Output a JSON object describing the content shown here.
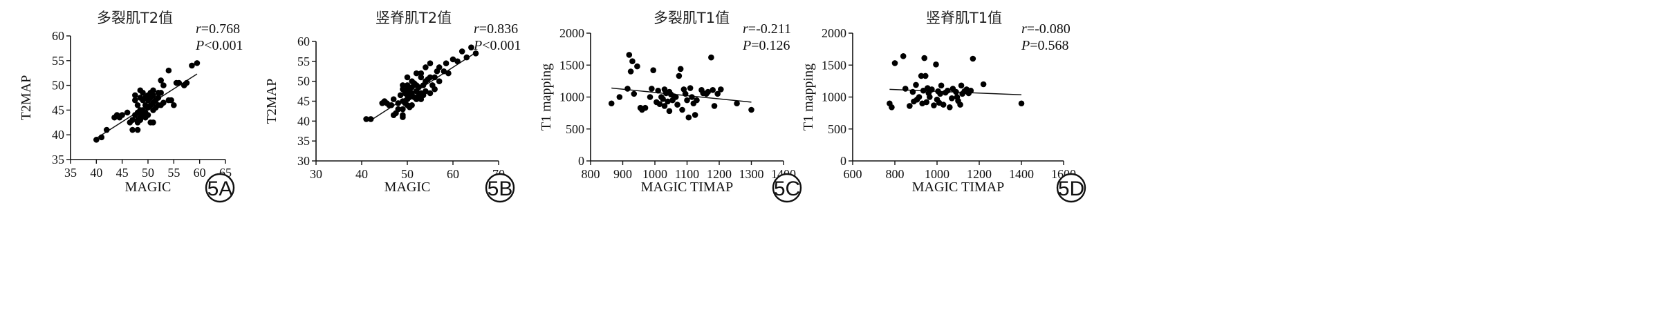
{
  "chart_data": [
    {
      "id": "5A",
      "type": "scatter",
      "title": "多裂肌T2值",
      "xlabel": "MAGIC",
      "ylabel": "T2MAP",
      "xlim": [
        35,
        65
      ],
      "ylim": [
        35,
        60
      ],
      "xticks": [
        "35",
        "40",
        "45",
        "50",
        "55",
        "60",
        "65"
      ],
      "yticks": [
        "35",
        "40",
        "45",
        "50",
        "55",
        "60"
      ],
      "r_label": "r",
      "r_value": "=0.768",
      "p_label": "P",
      "p_value": "<0.001",
      "badge": "5A",
      "fit": [
        [
          40,
          39.3
        ],
        [
          59.5,
          52.3
        ]
      ],
      "points": [
        [
          40,
          39
        ],
        [
          41,
          39.5
        ],
        [
          42,
          41
        ],
        [
          43.5,
          43.5
        ],
        [
          44,
          44
        ],
        [
          44.5,
          43.5
        ],
        [
          45,
          44
        ],
        [
          46,
          44.5
        ],
        [
          46.5,
          42.5
        ],
        [
          47,
          41
        ],
        [
          47,
          43
        ],
        [
          47.5,
          44
        ],
        [
          47.5,
          47
        ],
        [
          47.5,
          48
        ],
        [
          48,
          41
        ],
        [
          48,
          42.5
        ],
        [
          48,
          43
        ],
        [
          48,
          44.5
        ],
        [
          48,
          46
        ],
        [
          48.5,
          43
        ],
        [
          48.5,
          43.5
        ],
        [
          48.5,
          44.5
        ],
        [
          48.5,
          45
        ],
        [
          48.5,
          47.5
        ],
        [
          48.5,
          49
        ],
        [
          49,
          44
        ],
        [
          49,
          45
        ],
        [
          49,
          47
        ],
        [
          49,
          48.5
        ],
        [
          49.5,
          43.5
        ],
        [
          49.5,
          44.5
        ],
        [
          49.5,
          46
        ],
        [
          49.5,
          47.5
        ],
        [
          50,
          44
        ],
        [
          50,
          45.5
        ],
        [
          50,
          47
        ],
        [
          50,
          48
        ],
        [
          50.5,
          42.5
        ],
        [
          50.5,
          46
        ],
        [
          50.5,
          47.5
        ],
        [
          50.5,
          48.5
        ],
        [
          51,
          42.5
        ],
        [
          51,
          45
        ],
        [
          51,
          46.5
        ],
        [
          51,
          48
        ],
        [
          51,
          49
        ],
        [
          51.5,
          45.5
        ],
        [
          51.5,
          47
        ],
        [
          52,
          46
        ],
        [
          52,
          47.5
        ],
        [
          52,
          48.5
        ],
        [
          52.5,
          46
        ],
        [
          52.5,
          48.5
        ],
        [
          52.5,
          51
        ],
        [
          53,
          46.5
        ],
        [
          53,
          50
        ],
        [
          54,
          47
        ],
        [
          54,
          53
        ],
        [
          54.5,
          47
        ],
        [
          55,
          46
        ],
        [
          55.5,
          50.5
        ],
        [
          56,
          50.5
        ],
        [
          57,
          50
        ],
        [
          57.5,
          50.5
        ],
        [
          58.5,
          54
        ],
        [
          59.5,
          54.5
        ]
      ]
    },
    {
      "id": "5B",
      "type": "scatter",
      "title": "竖脊肌T2值",
      "xlabel": "MAGIC",
      "ylabel": "T2MAP",
      "xlim": [
        30,
        70
      ],
      "ylim": [
        30,
        60
      ],
      "xticks": [
        "30",
        "40",
        "50",
        "60",
        "70"
      ],
      "yticks": [
        "30",
        "35",
        "40",
        "45",
        "50",
        "55",
        "60"
      ],
      "r_label": "r",
      "r_value": "=0.836",
      "p_label": "P",
      "p_value": "<0.001",
      "badge": "5B",
      "fit": [
        [
          42,
          40.2
        ],
        [
          65,
          57.2
        ]
      ],
      "points": [
        [
          41,
          40.5
        ],
        [
          42,
          40.5
        ],
        [
          44.5,
          44.5
        ],
        [
          45,
          45
        ],
        [
          45.5,
          44.5
        ],
        [
          46,
          44
        ],
        [
          46.5,
          44
        ],
        [
          47,
          41.5
        ],
        [
          47,
          45.5
        ],
        [
          47.5,
          42
        ],
        [
          48,
          43
        ],
        [
          48,
          44.5
        ],
        [
          48.5,
          46.5
        ],
        [
          49,
          41
        ],
        [
          49,
          41.5
        ],
        [
          49,
          43
        ],
        [
          49,
          45
        ],
        [
          49,
          48
        ],
        [
          49,
          49
        ],
        [
          49.5,
          44.5
        ],
        [
          49.5,
          47
        ],
        [
          49.5,
          47.5
        ],
        [
          50,
          44
        ],
        [
          50,
          45.5
        ],
        [
          50,
          46.5
        ],
        [
          50,
          48
        ],
        [
          50,
          49
        ],
        [
          50,
          51
        ],
        [
          50.5,
          43.5
        ],
        [
          50.5,
          46
        ],
        [
          50.5,
          47.5
        ],
        [
          51,
          44
        ],
        [
          51,
          47
        ],
        [
          51,
          48.5
        ],
        [
          51,
          50
        ],
        [
          51.5,
          46
        ],
        [
          51.5,
          49.5
        ],
        [
          52,
          45.5
        ],
        [
          52,
          47.5
        ],
        [
          52,
          49
        ],
        [
          52,
          52
        ],
        [
          52.5,
          46.5
        ],
        [
          52.5,
          48.5
        ],
        [
          53,
          45.5
        ],
        [
          53,
          47
        ],
        [
          53,
          51
        ],
        [
          53,
          52
        ],
        [
          53.5,
          46.5
        ],
        [
          53.5,
          49
        ],
        [
          54,
          47.5
        ],
        [
          54,
          50
        ],
        [
          54,
          53.5
        ],
        [
          54.5,
          50.5
        ],
        [
          55,
          47
        ],
        [
          55,
          51
        ],
        [
          55,
          54.5
        ],
        [
          55.5,
          49
        ],
        [
          56,
          48
        ],
        [
          56,
          51
        ],
        [
          56.5,
          52.5
        ],
        [
          57,
          50
        ],
        [
          57,
          53.5
        ],
        [
          58,
          52.5
        ],
        [
          58.5,
          54.5
        ],
        [
          59,
          52
        ],
        [
          60,
          55.5
        ],
        [
          61,
          55
        ],
        [
          62,
          57.5
        ],
        [
          63,
          56
        ],
        [
          64,
          58.5
        ],
        [
          65,
          57
        ]
      ]
    },
    {
      "id": "5C",
      "type": "scatter",
      "title": "多裂肌T1值",
      "xlabel": "MAGIC TIMAP",
      "ylabel": "T1 mapping",
      "xlim": [
        800,
        1400
      ],
      "ylim": [
        0,
        2000
      ],
      "xticks": [
        "800",
        "900",
        "1000",
        "1100",
        "1200",
        "1300",
        "1400"
      ],
      "yticks": [
        "0",
        "500",
        "1000",
        "1500",
        "2000"
      ],
      "r_label": "r",
      "r_value": "=-0.211",
      "p_label": "P",
      "p_value": "=0.126",
      "badge": "5C",
      "fit": [
        [
          865,
          1140
        ],
        [
          1300,
          920
        ]
      ],
      "points": [
        [
          865,
          900
        ],
        [
          890,
          1000
        ],
        [
          915,
          1130
        ],
        [
          920,
          1660
        ],
        [
          925,
          1400
        ],
        [
          930,
          1560
        ],
        [
          935,
          1050
        ],
        [
          945,
          1480
        ],
        [
          955,
          830
        ],
        [
          960,
          800
        ],
        [
          970,
          830
        ],
        [
          985,
          1000
        ],
        [
          990,
          1130
        ],
        [
          995,
          1420
        ],
        [
          1005,
          920
        ],
        [
          1010,
          1100
        ],
        [
          1015,
          890
        ],
        [
          1020,
          1000
        ],
        [
          1025,
          970
        ],
        [
          1030,
          1120
        ],
        [
          1030,
          860
        ],
        [
          1035,
          1060
        ],
        [
          1040,
          930
        ],
        [
          1045,
          1080
        ],
        [
          1045,
          780
        ],
        [
          1050,
          1040
        ],
        [
          1055,
          950
        ],
        [
          1060,
          1010
        ],
        [
          1065,
          1000
        ],
        [
          1070,
          880
        ],
        [
          1075,
          1330
        ],
        [
          1080,
          1440
        ],
        [
          1085,
          800
        ],
        [
          1090,
          1120
        ],
        [
          1095,
          1050
        ],
        [
          1100,
          950
        ],
        [
          1105,
          680
        ],
        [
          1110,
          1140
        ],
        [
          1115,
          1000
        ],
        [
          1120,
          900
        ],
        [
          1125,
          720
        ],
        [
          1130,
          950
        ],
        [
          1145,
          1110
        ],
        [
          1150,
          1060
        ],
        [
          1160,
          1050
        ],
        [
          1165,
          1080
        ],
        [
          1175,
          1620
        ],
        [
          1180,
          1110
        ],
        [
          1185,
          860
        ],
        [
          1195,
          1050
        ],
        [
          1205,
          1120
        ],
        [
          1255,
          900
        ],
        [
          1300,
          800
        ]
      ]
    },
    {
      "id": "5D",
      "type": "scatter",
      "title": "竖脊肌T1值",
      "xlabel": "MAGIC TIMAP",
      "ylabel": "T1 mapping",
      "xlim": [
        600,
        1600
      ],
      "ylim": [
        0,
        2000
      ],
      "xticks": [
        "600",
        "800",
        "1000",
        "1200",
        "1400",
        "1600"
      ],
      "yticks": [
        "0",
        "500",
        "1000",
        "1500",
        "2000"
      ],
      "r_label": "r",
      "r_value": "=-0.080",
      "p_label": "P",
      "p_value": "=0.568",
      "badge": "5D",
      "fit": [
        [
          775,
          1120
        ],
        [
          1400,
          1035
        ]
      ],
      "points": [
        [
          775,
          900
        ],
        [
          785,
          840
        ],
        [
          800,
          1530
        ],
        [
          840,
          1640
        ],
        [
          850,
          1130
        ],
        [
          870,
          860
        ],
        [
          885,
          1080
        ],
        [
          890,
          930
        ],
        [
          900,
          1190
        ],
        [
          905,
          960
        ],
        [
          915,
          1000
        ],
        [
          925,
          1330
        ],
        [
          930,
          900
        ],
        [
          935,
          1100
        ],
        [
          940,
          1610
        ],
        [
          945,
          1330
        ],
        [
          950,
          920
        ],
        [
          955,
          1140
        ],
        [
          960,
          1060
        ],
        [
          965,
          1000
        ],
        [
          970,
          1110
        ],
        [
          975,
          1120
        ],
        [
          985,
          870
        ],
        [
          995,
          1510
        ],
        [
          1000,
          960
        ],
        [
          1005,
          1090
        ],
        [
          1010,
          910
        ],
        [
          1015,
          1050
        ],
        [
          1020,
          1180
        ],
        [
          1030,
          880
        ],
        [
          1040,
          1070
        ],
        [
          1050,
          1100
        ],
        [
          1060,
          840
        ],
        [
          1070,
          980
        ],
        [
          1075,
          1130
        ],
        [
          1090,
          1080
        ],
        [
          1095,
          1000
        ],
        [
          1100,
          940
        ],
        [
          1110,
          880
        ],
        [
          1115,
          1180
        ],
        [
          1120,
          1050
        ],
        [
          1130,
          1090
        ],
        [
          1140,
          1120
        ],
        [
          1150,
          1060
        ],
        [
          1160,
          1100
        ],
        [
          1170,
          1600
        ],
        [
          1220,
          1200
        ],
        [
          1400,
          900
        ]
      ]
    }
  ]
}
